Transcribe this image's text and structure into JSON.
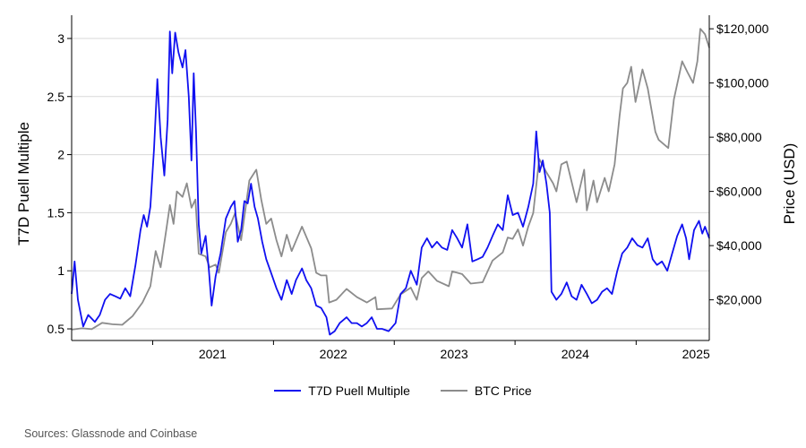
{
  "chart_data": {
    "type": "line",
    "x_unit": "date",
    "x_ticks": [
      "2021",
      "2022",
      "2023",
      "2024",
      "2025"
    ],
    "x_range": [
      "2020-05-01",
      "2025-08-10"
    ],
    "left_axis": {
      "label": "T7D Puell Multiple",
      "range": [
        0.4,
        3.2
      ],
      "ticks": [
        "0.5",
        "1",
        "1.5",
        "2",
        "2.5",
        "3"
      ]
    },
    "right_axis": {
      "label": "Price (USD)",
      "range": [
        5000,
        125000
      ],
      "ticks": [
        "$20,000",
        "$40,000",
        "$60,000",
        "$80,000",
        "$100,000",
        "$120,000"
      ]
    },
    "grid": "horizontal",
    "legend_position": "bottom-center",
    "series": [
      {
        "name": "T7D Puell Multiple",
        "axis": "left",
        "color": "#1010f0",
        "points": [
          [
            "2020-05-01",
            0.8
          ],
          [
            "2020-05-10",
            1.08
          ],
          [
            "2020-05-20",
            0.75
          ],
          [
            "2020-06-05",
            0.52
          ],
          [
            "2020-06-20",
            0.62
          ],
          [
            "2020-07-10",
            0.56
          ],
          [
            "2020-07-25",
            0.62
          ],
          [
            "2020-08-10",
            0.75
          ],
          [
            "2020-08-25",
            0.8
          ],
          [
            "2020-09-10",
            0.78
          ],
          [
            "2020-09-25",
            0.76
          ],
          [
            "2020-10-10",
            0.85
          ],
          [
            "2020-10-25",
            0.78
          ],
          [
            "2020-11-10",
            1.05
          ],
          [
            "2020-11-25",
            1.35
          ],
          [
            "2020-12-05",
            1.48
          ],
          [
            "2020-12-15",
            1.38
          ],
          [
            "2020-12-25",
            1.55
          ],
          [
            "2021-01-05",
            2.05
          ],
          [
            "2021-01-15",
            2.65
          ],
          [
            "2021-01-25",
            2.15
          ],
          [
            "2021-02-05",
            1.82
          ],
          [
            "2021-02-15",
            2.3
          ],
          [
            "2021-02-22",
            3.06
          ],
          [
            "2021-03-01",
            2.7
          ],
          [
            "2021-03-10",
            3.05
          ],
          [
            "2021-03-20",
            2.88
          ],
          [
            "2021-04-01",
            2.75
          ],
          [
            "2021-04-10",
            2.9
          ],
          [
            "2021-04-20",
            2.5
          ],
          [
            "2021-04-28",
            1.95
          ],
          [
            "2021-05-05",
            2.7
          ],
          [
            "2021-05-12",
            2.2
          ],
          [
            "2021-05-20",
            1.4
          ],
          [
            "2021-05-28",
            1.15
          ],
          [
            "2021-06-10",
            1.3
          ],
          [
            "2021-06-20",
            1.0
          ],
          [
            "2021-06-28",
            0.7
          ],
          [
            "2021-07-10",
            0.95
          ],
          [
            "2021-07-25",
            1.15
          ],
          [
            "2021-08-10",
            1.45
          ],
          [
            "2021-08-25",
            1.55
          ],
          [
            "2021-09-05",
            1.6
          ],
          [
            "2021-09-15",
            1.25
          ],
          [
            "2021-09-25",
            1.35
          ],
          [
            "2021-10-05",
            1.6
          ],
          [
            "2021-10-15",
            1.58
          ],
          [
            "2021-10-25",
            1.75
          ],
          [
            "2021-11-05",
            1.55
          ],
          [
            "2021-11-15",
            1.45
          ],
          [
            "2021-11-28",
            1.25
          ],
          [
            "2021-12-10",
            1.1
          ],
          [
            "2021-12-25",
            0.98
          ],
          [
            "2022-01-10",
            0.85
          ],
          [
            "2022-01-25",
            0.75
          ],
          [
            "2022-02-10",
            0.92
          ],
          [
            "2022-02-25",
            0.8
          ],
          [
            "2022-03-10",
            0.92
          ],
          [
            "2022-03-28",
            1.02
          ],
          [
            "2022-04-10",
            0.92
          ],
          [
            "2022-04-25",
            0.85
          ],
          [
            "2022-05-10",
            0.7
          ],
          [
            "2022-05-25",
            0.68
          ],
          [
            "2022-06-10",
            0.6
          ],
          [
            "2022-06-20",
            0.45
          ],
          [
            "2022-07-05",
            0.48
          ],
          [
            "2022-07-20",
            0.55
          ],
          [
            "2022-08-10",
            0.6
          ],
          [
            "2022-08-25",
            0.55
          ],
          [
            "2022-09-10",
            0.55
          ],
          [
            "2022-09-25",
            0.52
          ],
          [
            "2022-10-10",
            0.55
          ],
          [
            "2022-10-25",
            0.6
          ],
          [
            "2022-11-10",
            0.5
          ],
          [
            "2022-11-25",
            0.5
          ],
          [
            "2022-12-15",
            0.48
          ],
          [
            "2023-01-05",
            0.55
          ],
          [
            "2023-01-20",
            0.8
          ],
          [
            "2023-02-05",
            0.85
          ],
          [
            "2023-02-20",
            1.0
          ],
          [
            "2023-03-10",
            0.88
          ],
          [
            "2023-03-25",
            1.2
          ],
          [
            "2023-04-10",
            1.28
          ],
          [
            "2023-04-25",
            1.2
          ],
          [
            "2023-05-10",
            1.25
          ],
          [
            "2023-05-25",
            1.2
          ],
          [
            "2023-06-10",
            1.18
          ],
          [
            "2023-06-25",
            1.35
          ],
          [
            "2023-07-10",
            1.28
          ],
          [
            "2023-07-25",
            1.2
          ],
          [
            "2023-08-10",
            1.4
          ],
          [
            "2023-08-25",
            1.08
          ],
          [
            "2023-09-10",
            1.1
          ],
          [
            "2023-09-25",
            1.12
          ],
          [
            "2023-10-10",
            1.2
          ],
          [
            "2023-10-25",
            1.3
          ],
          [
            "2023-11-10",
            1.4
          ],
          [
            "2023-11-25",
            1.35
          ],
          [
            "2023-12-10",
            1.65
          ],
          [
            "2023-12-25",
            1.48
          ],
          [
            "2024-01-10",
            1.5
          ],
          [
            "2024-01-25",
            1.38
          ],
          [
            "2024-02-10",
            1.55
          ],
          [
            "2024-02-25",
            1.75
          ],
          [
            "2024-03-05",
            2.2
          ],
          [
            "2024-03-15",
            1.85
          ],
          [
            "2024-03-25",
            1.95
          ],
          [
            "2024-04-05",
            1.75
          ],
          [
            "2024-04-15",
            1.5
          ],
          [
            "2024-04-20",
            0.82
          ],
          [
            "2024-05-05",
            0.75
          ],
          [
            "2024-05-20",
            0.8
          ],
          [
            "2024-06-05",
            0.9
          ],
          [
            "2024-06-20",
            0.78
          ],
          [
            "2024-07-05",
            0.75
          ],
          [
            "2024-07-20",
            0.88
          ],
          [
            "2024-08-05",
            0.8
          ],
          [
            "2024-08-20",
            0.72
          ],
          [
            "2024-09-05",
            0.75
          ],
          [
            "2024-09-20",
            0.82
          ],
          [
            "2024-10-05",
            0.85
          ],
          [
            "2024-10-20",
            0.8
          ],
          [
            "2024-11-05",
            1.0
          ],
          [
            "2024-11-20",
            1.15
          ],
          [
            "2024-12-05",
            1.2
          ],
          [
            "2024-12-20",
            1.28
          ],
          [
            "2025-01-05",
            1.22
          ],
          [
            "2025-01-20",
            1.2
          ],
          [
            "2025-02-05",
            1.28
          ],
          [
            "2025-02-20",
            1.1
          ],
          [
            "2025-03-05",
            1.05
          ],
          [
            "2025-03-20",
            1.08
          ],
          [
            "2025-04-05",
            1.0
          ],
          [
            "2025-04-20",
            1.15
          ],
          [
            "2025-05-05",
            1.3
          ],
          [
            "2025-05-20",
            1.4
          ],
          [
            "2025-06-01",
            1.28
          ],
          [
            "2025-06-10",
            1.1
          ],
          [
            "2025-06-25",
            1.35
          ],
          [
            "2025-07-10",
            1.43
          ],
          [
            "2025-07-20",
            1.32
          ],
          [
            "2025-07-28",
            1.38
          ],
          [
            "2025-08-10",
            1.28
          ]
        ]
      },
      {
        "name": "BTC Price",
        "axis": "right",
        "color": "#8c8c8c",
        "points": [
          [
            "2020-05-01",
            9000
          ],
          [
            "2020-06-01",
            9500
          ],
          [
            "2020-07-01",
            9200
          ],
          [
            "2020-08-01",
            11500
          ],
          [
            "2020-09-01",
            11000
          ],
          [
            "2020-10-01",
            10800
          ],
          [
            "2020-11-01",
            14000
          ],
          [
            "2020-12-01",
            19000
          ],
          [
            "2020-12-25",
            25000
          ],
          [
            "2021-01-10",
            38000
          ],
          [
            "2021-01-25",
            32000
          ],
          [
            "2021-02-10",
            45000
          ],
          [
            "2021-02-22",
            55000
          ],
          [
            "2021-03-05",
            48000
          ],
          [
            "2021-03-15",
            60000
          ],
          [
            "2021-04-01",
            58000
          ],
          [
            "2021-04-14",
            63000
          ],
          [
            "2021-04-28",
            54000
          ],
          [
            "2021-05-10",
            57000
          ],
          [
            "2021-05-20",
            37000
          ],
          [
            "2021-06-10",
            36000
          ],
          [
            "2021-06-22",
            32000
          ],
          [
            "2021-07-10",
            33000
          ],
          [
            "2021-07-20",
            30000
          ],
          [
            "2021-08-10",
            45000
          ],
          [
            "2021-08-25",
            48000
          ],
          [
            "2021-09-07",
            52000
          ],
          [
            "2021-09-25",
            42000
          ],
          [
            "2021-10-10",
            55000
          ],
          [
            "2021-10-20",
            64000
          ],
          [
            "2021-11-10",
            68000
          ],
          [
            "2021-11-25",
            57000
          ],
          [
            "2021-12-10",
            48000
          ],
          [
            "2021-12-25",
            50000
          ],
          [
            "2022-01-10",
            42000
          ],
          [
            "2022-01-25",
            36000
          ],
          [
            "2022-02-10",
            44000
          ],
          [
            "2022-02-25",
            38000
          ],
          [
            "2022-03-28",
            47000
          ],
          [
            "2022-04-25",
            39000
          ],
          [
            "2022-05-10",
            30000
          ],
          [
            "2022-05-25",
            29000
          ],
          [
            "2022-06-10",
            29000
          ],
          [
            "2022-06-18",
            19000
          ],
          [
            "2022-07-10",
            20000
          ],
          [
            "2022-08-10",
            24000
          ],
          [
            "2022-09-10",
            21000
          ],
          [
            "2022-10-10",
            19000
          ],
          [
            "2022-11-05",
            21000
          ],
          [
            "2022-11-10",
            16500
          ],
          [
            "2022-12-25",
            16800
          ],
          [
            "2023-01-20",
            22000
          ],
          [
            "2023-02-20",
            24500
          ],
          [
            "2023-03-10",
            20000
          ],
          [
            "2023-03-25",
            28000
          ],
          [
            "2023-04-14",
            30500
          ],
          [
            "2023-05-10",
            27000
          ],
          [
            "2023-06-15",
            25000
          ],
          [
            "2023-06-25",
            30500
          ],
          [
            "2023-07-25",
            29500
          ],
          [
            "2023-08-20",
            26000
          ],
          [
            "2023-09-25",
            26500
          ],
          [
            "2023-10-25",
            34500
          ],
          [
            "2023-11-25",
            37500
          ],
          [
            "2023-12-10",
            43000
          ],
          [
            "2023-12-25",
            42500
          ],
          [
            "2024-01-10",
            46000
          ],
          [
            "2024-01-25",
            40000
          ],
          [
            "2024-02-10",
            47000
          ],
          [
            "2024-02-25",
            52000
          ],
          [
            "2024-03-14",
            72000
          ],
          [
            "2024-04-05",
            67000
          ],
          [
            "2024-04-25",
            63000
          ],
          [
            "2024-05-05",
            60000
          ],
          [
            "2024-05-20",
            70000
          ],
          [
            "2024-06-05",
            71000
          ],
          [
            "2024-07-05",
            56000
          ],
          [
            "2024-07-28",
            68000
          ],
          [
            "2024-08-05",
            53000
          ],
          [
            "2024-08-25",
            64000
          ],
          [
            "2024-09-05",
            56000
          ],
          [
            "2024-09-28",
            65000
          ],
          [
            "2024-10-10",
            60000
          ],
          [
            "2024-10-28",
            70000
          ],
          [
            "2024-11-12",
            88000
          ],
          [
            "2024-11-22",
            98000
          ],
          [
            "2024-12-05",
            100000
          ],
          [
            "2024-12-17",
            106000
          ],
          [
            "2024-12-30",
            93000
          ],
          [
            "2025-01-20",
            105000
          ],
          [
            "2025-02-05",
            98000
          ],
          [
            "2025-02-28",
            82000
          ],
          [
            "2025-03-10",
            79000
          ],
          [
            "2025-04-08",
            76000
          ],
          [
            "2025-04-25",
            94000
          ],
          [
            "2025-05-20",
            108000
          ],
          [
            "2025-06-05",
            104000
          ],
          [
            "2025-06-22",
            100000
          ],
          [
            "2025-07-05",
            108000
          ],
          [
            "2025-07-14",
            120000
          ],
          [
            "2025-07-28",
            118000
          ],
          [
            "2025-08-10",
            113000
          ]
        ]
      }
    ]
  },
  "footer": {
    "source": "Sources: Glassnode and Coinbase"
  }
}
